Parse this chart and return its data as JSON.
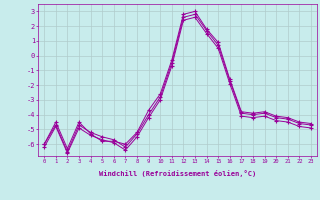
{
  "xlabel": "Windchill (Refroidissement éolien,°C)",
  "background_color": "#c8ecec",
  "grid_color": "#b0cccc",
  "line_color": "#990099",
  "x": [
    0,
    1,
    2,
    3,
    4,
    5,
    6,
    7,
    8,
    9,
    10,
    11,
    12,
    13,
    14,
    15,
    16,
    17,
    18,
    19,
    20,
    21,
    22,
    23
  ],
  "series1": [
    -6.0,
    -4.5,
    -6.3,
    -4.5,
    -5.3,
    -5.8,
    -5.8,
    -6.0,
    -5.2,
    -3.7,
    -2.6,
    -0.3,
    2.8,
    3.0,
    1.8,
    0.9,
    -1.6,
    -3.8,
    -3.9,
    -3.8,
    -4.1,
    -4.2,
    -4.5,
    -4.6
  ],
  "series2": [
    -6.0,
    -4.7,
    -6.5,
    -4.7,
    -5.2,
    -5.5,
    -5.7,
    -6.2,
    -5.3,
    -4.0,
    -2.8,
    -0.5,
    2.6,
    2.8,
    1.7,
    0.7,
    -1.7,
    -3.9,
    -4.0,
    -3.9,
    -4.2,
    -4.3,
    -4.6,
    -4.7
  ],
  "series3": [
    -6.2,
    -4.8,
    -6.6,
    -4.9,
    -5.4,
    -5.7,
    -5.9,
    -6.4,
    -5.5,
    -4.2,
    -3.0,
    -0.7,
    2.4,
    2.6,
    1.5,
    0.5,
    -1.9,
    -4.1,
    -4.2,
    -4.1,
    -4.4,
    -4.5,
    -4.8,
    -4.9
  ],
  "ylim": [
    -6.8,
    3.5
  ],
  "yticks": [
    -6,
    -5,
    -4,
    -3,
    -2,
    -1,
    0,
    1,
    2,
    3
  ],
  "xticks": [
    0,
    1,
    2,
    3,
    4,
    5,
    6,
    7,
    8,
    9,
    10,
    11,
    12,
    13,
    14,
    15,
    16,
    17,
    18,
    19,
    20,
    21,
    22,
    23
  ],
  "figsize": [
    3.2,
    2.0
  ],
  "dpi": 100
}
